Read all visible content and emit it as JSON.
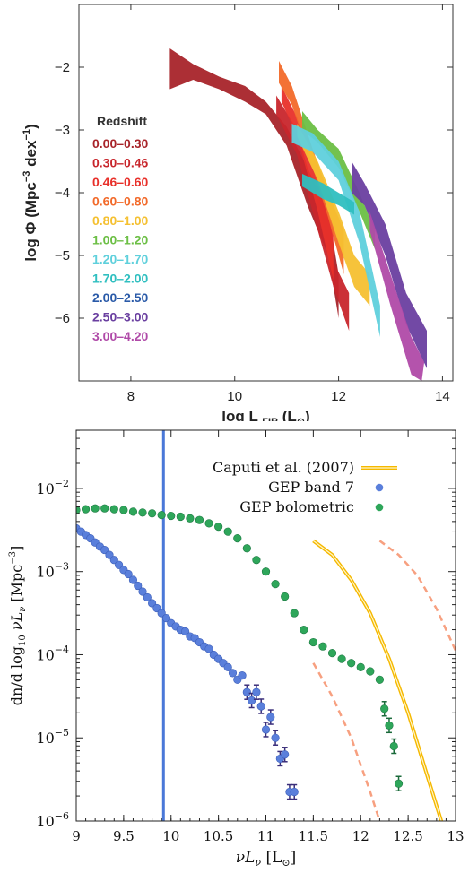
{
  "chart_data": [
    {
      "type": "area",
      "xlabel": "log L",
      "xlabel_sub": "FIR",
      "xlabel_unit": "(L",
      "xlabel_unit_end": ")",
      "ylabel": "log Φ (Mpc",
      "ylabel_exp1": "−3",
      "ylabel_mid": " dex",
      "ylabel_exp2": "−1",
      "ylabel_end": ")",
      "xlim": [
        7,
        14.2
      ],
      "ylim": [
        -7,
        -1
      ],
      "xticks": [
        8,
        10,
        12,
        14
      ],
      "yticks": [
        -2,
        -3,
        -4,
        -5,
        -6
      ],
      "legend_title": "Redshift",
      "legend_placement": "left",
      "series": [
        {
          "name": "0.00–0.30",
          "color": "#a8242a"
        },
        {
          "name": "0.30–0.46",
          "color": "#c8262c"
        },
        {
          "name": "0.46–0.60",
          "color": "#e8302a"
        },
        {
          "name": "0.60–0.80",
          "color": "#f26a2a"
        },
        {
          "name": "0.80–1.00",
          "color": "#f5c030"
        },
        {
          "name": "1.00–1.20",
          "color": "#6cbf45"
        },
        {
          "name": "1.20–1.70",
          "color": "#5fd0dc"
        },
        {
          "name": "1.70–2.00",
          "color": "#2fbfc0"
        },
        {
          "name": "2.00–2.50",
          "color": "#2a5aa8"
        },
        {
          "name": "2.50–3.00",
          "color": "#6a3fa0"
        },
        {
          "name": "3.00–4.20",
          "color": "#b04aa8"
        }
      ],
      "bands": [
        {
          "color": "#a8242a",
          "upper": [
            [
              8.75,
              -1.7
            ],
            [
              9.2,
              -1.95
            ],
            [
              9.7,
              -2.15
            ],
            [
              10.2,
              -2.3
            ],
            [
              10.6,
              -2.55
            ],
            [
              11.0,
              -2.95
            ],
            [
              11.4,
              -3.6
            ],
            [
              11.8,
              -4.3
            ],
            [
              12.0,
              -5.3
            ]
          ],
          "lower": [
            [
              8.75,
              -2.35
            ],
            [
              9.2,
              -2.2
            ],
            [
              9.7,
              -2.35
            ],
            [
              10.2,
              -2.55
            ],
            [
              10.6,
              -2.75
            ],
            [
              11.0,
              -3.25
            ],
            [
              11.4,
              -4.2
            ],
            [
              11.8,
              -5.0
            ],
            [
              12.0,
              -6.0
            ]
          ]
        },
        {
          "color": "#c8262c",
          "upper": [
            [
              10.8,
              -2.45
            ],
            [
              11.2,
              -3.0
            ],
            [
              11.6,
              -4.2
            ],
            [
              11.9,
              -5.1
            ],
            [
              12.2,
              -5.6
            ]
          ],
          "lower": [
            [
              10.8,
              -2.75
            ],
            [
              11.2,
              -3.4
            ],
            [
              11.6,
              -4.6
            ],
            [
              11.9,
              -5.5
            ],
            [
              12.2,
              -6.2
            ]
          ]
        },
        {
          "color": "#e8302a",
          "upper": [
            [
              10.9,
              -2.3
            ],
            [
              11.2,
              -2.8
            ],
            [
              11.6,
              -3.8
            ],
            [
              11.9,
              -4.6
            ]
          ],
          "lower": [
            [
              10.9,
              -2.55
            ],
            [
              11.2,
              -3.1
            ],
            [
              11.6,
              -4.3
            ],
            [
              11.9,
              -5.4
            ]
          ]
        },
        {
          "color": "#f26a2a",
          "upper": [
            [
              10.85,
              -1.9
            ],
            [
              11.1,
              -2.3
            ],
            [
              11.5,
              -3.3
            ],
            [
              11.8,
              -4.0
            ],
            [
              12.1,
              -4.6
            ]
          ],
          "lower": [
            [
              10.85,
              -2.25
            ],
            [
              11.1,
              -2.6
            ],
            [
              11.5,
              -3.6
            ],
            [
              11.8,
              -4.4
            ],
            [
              12.1,
              -5.3
            ]
          ]
        },
        {
          "color": "#f5c030",
          "upper": [
            [
              11.2,
              -2.9
            ],
            [
              11.6,
              -3.5
            ],
            [
              12.0,
              -4.3
            ],
            [
              12.3,
              -5.0
            ],
            [
              12.6,
              -5.3
            ]
          ],
          "lower": [
            [
              11.2,
              -3.1
            ],
            [
              11.6,
              -3.8
            ],
            [
              12.0,
              -4.8
            ],
            [
              12.3,
              -5.5
            ],
            [
              12.6,
              -5.8
            ]
          ]
        },
        {
          "color": "#6cbf45",
          "upper": [
            [
              11.3,
              -2.7
            ],
            [
              11.6,
              -3.0
            ],
            [
              12.0,
              -3.3
            ],
            [
              12.4,
              -4.0
            ],
            [
              12.7,
              -4.6
            ]
          ],
          "lower": [
            [
              11.3,
              -3.0
            ],
            [
              11.6,
              -3.2
            ],
            [
              12.0,
              -3.6
            ],
            [
              12.4,
              -4.3
            ],
            [
              12.7,
              -4.9
            ]
          ]
        },
        {
          "color": "#5fd0dc",
          "upper": [
            [
              11.1,
              -2.9
            ],
            [
              11.5,
              -3.05
            ],
            [
              12.0,
              -3.5
            ],
            [
              12.4,
              -4.3
            ],
            [
              12.8,
              -5.8
            ]
          ],
          "lower": [
            [
              11.1,
              -3.2
            ],
            [
              11.5,
              -3.35
            ],
            [
              12.0,
              -3.8
            ],
            [
              12.4,
              -4.8
            ],
            [
              12.8,
              -6.3
            ]
          ]
        },
        {
          "color": "#2fbfc0",
          "upper": [
            [
              11.3,
              -3.7
            ],
            [
              11.7,
              -3.85
            ],
            [
              12.0,
              -4.0
            ],
            [
              12.3,
              -4.15
            ]
          ],
          "lower": [
            [
              11.3,
              -3.9
            ],
            [
              11.7,
              -4.1
            ],
            [
              12.0,
              -4.2
            ],
            [
              12.3,
              -4.35
            ]
          ]
        },
        {
          "color": "#6a3fa0",
          "upper": [
            [
              12.25,
              -3.5
            ],
            [
              12.5,
              -3.85
            ],
            [
              12.9,
              -4.5
            ],
            [
              13.3,
              -5.6
            ],
            [
              13.7,
              -6.2
            ]
          ],
          "lower": [
            [
              12.25,
              -4.0
            ],
            [
              12.5,
              -4.2
            ],
            [
              12.9,
              -5.0
            ],
            [
              13.3,
              -6.1
            ],
            [
              13.7,
              -6.8
            ]
          ]
        },
        {
          "color": "#b04aa8",
          "upper": [
            [
              12.6,
              -4.3
            ],
            [
              13.0,
              -5.3
            ],
            [
              13.4,
              -6.3
            ],
            [
              13.65,
              -6.7
            ]
          ],
          "lower": [
            [
              12.6,
              -4.6
            ],
            [
              13.0,
              -5.8
            ],
            [
              13.4,
              -6.9
            ],
            [
              13.6,
              -7.0
            ]
          ]
        }
      ]
    },
    {
      "type": "scatter",
      "xlabel": "νL",
      "xlabel_sub": "ν",
      "xlabel_unit": " [L",
      "xlabel_unit_end": "]",
      "ylabel": "dn/d log",
      "ylabel_sub": "10",
      "ylabel_tail": " νL",
      "ylabel_sub2": "ν",
      "ylabel_unit": " [Mpc",
      "ylabel_exp": "−3",
      "ylabel_end": "]",
      "xlim": [
        9,
        13
      ],
      "ylim_log10": [
        -6,
        -2
      ],
      "ylim_top_log10": -1.3,
      "xticks": [
        "9",
        "9.5",
        "10",
        "10.5",
        "11",
        "11.5",
        "12",
        "12.5",
        "13"
      ],
      "yticks": [
        {
          "base": "10",
          "exp": "−2",
          "v": -2
        },
        {
          "base": "10",
          "exp": "−3",
          "v": -3
        },
        {
          "base": "10",
          "exp": "−4",
          "v": -4
        },
        {
          "base": "10",
          "exp": "−5",
          "v": -5
        },
        {
          "base": "10",
          "exp": "−6",
          "v": -6
        }
      ],
      "vertical_line_x": 9.92,
      "legend_placement": "top-right",
      "legend": [
        {
          "name": "Caputi et al. (2007)",
          "kind": "line",
          "color": "#f5b800"
        },
        {
          "name": "GEP band 7",
          "kind": "marker",
          "color": "#5a7fdb"
        },
        {
          "name": "GEP bolometric",
          "kind": "marker",
          "color": "#2ea65a"
        }
      ],
      "series": [
        {
          "name": "GEP band 7",
          "color": "#5a7fdb",
          "x": [
            9.0,
            9.05,
            9.1,
            9.15,
            9.2,
            9.25,
            9.3,
            9.35,
            9.4,
            9.45,
            9.5,
            9.55,
            9.6,
            9.65,
            9.7,
            9.75,
            9.8,
            9.85,
            9.9,
            9.95,
            10.0,
            10.05,
            10.1,
            10.15,
            10.2,
            10.25,
            10.3,
            10.35,
            10.4,
            10.45,
            10.5,
            10.55,
            10.6,
            10.65,
            10.7,
            10.75,
            10.8,
            10.85,
            10.9,
            10.95,
            11.0,
            11.05,
            11.1,
            11.15,
            11.2,
            11.25,
            11.3
          ],
          "log10_y": [
            -2.48,
            -2.52,
            -2.56,
            -2.6,
            -2.65,
            -2.7,
            -2.74,
            -2.8,
            -2.86,
            -2.92,
            -2.98,
            -3.03,
            -3.1,
            -3.17,
            -3.24,
            -3.31,
            -3.38,
            -3.44,
            -3.5,
            -3.56,
            -3.62,
            -3.66,
            -3.7,
            -3.72,
            -3.78,
            -3.8,
            -3.85,
            -3.9,
            -3.93,
            -4.0,
            -4.05,
            -4.1,
            -4.15,
            -4.22,
            -4.3,
            -4.25,
            -4.45,
            -4.55,
            -4.45,
            -4.62,
            -4.9,
            -4.75,
            -5.0,
            -5.25,
            -5.2,
            -5.65,
            -5.65
          ]
        },
        {
          "name": "GEP bolometric",
          "color": "#2ea65a",
          "x": [
            9.0,
            9.1,
            9.2,
            9.3,
            9.4,
            9.5,
            9.6,
            9.7,
            9.8,
            9.9,
            10.0,
            10.1,
            10.2,
            10.3,
            10.4,
            10.5,
            10.6,
            10.7,
            10.8,
            10.9,
            11.0,
            11.1,
            11.2,
            11.3,
            11.4,
            11.5,
            11.6,
            11.7,
            11.8,
            11.9,
            12.0,
            12.1,
            12.2,
            12.25,
            12.3,
            12.35,
            12.4
          ],
          "log10_y": [
            -2.26,
            -2.25,
            -2.24,
            -2.24,
            -2.25,
            -2.26,
            -2.28,
            -2.29,
            -2.3,
            -2.32,
            -2.33,
            -2.34,
            -2.36,
            -2.38,
            -2.42,
            -2.46,
            -2.52,
            -2.6,
            -2.72,
            -2.86,
            -3.0,
            -3.15,
            -3.3,
            -3.5,
            -3.7,
            -3.85,
            -3.9,
            -3.98,
            -4.05,
            -4.1,
            -4.15,
            -4.2,
            -4.3,
            -4.65,
            -4.85,
            -5.1,
            -5.55
          ]
        }
      ],
      "curves": [
        {
          "color": "#f5b800",
          "style": "solid",
          "x": [
            11.5,
            11.7,
            11.9,
            12.1,
            12.3,
            12.5,
            12.7,
            12.85
          ],
          "log10_y": [
            -2.63,
            -2.8,
            -3.1,
            -3.5,
            -4.05,
            -4.7,
            -5.45,
            -6.0
          ]
        },
        {
          "color": "#f7a080",
          "style": "dashed",
          "x": [
            11.5,
            11.7,
            11.9,
            12.1,
            12.2
          ],
          "log10_y": [
            -4.1,
            -4.5,
            -5.0,
            -5.65,
            -6.0
          ]
        },
        {
          "color": "#f7a080",
          "style": "dashed",
          "x": [
            12.2,
            12.4,
            12.6,
            12.8,
            13.0
          ],
          "log10_y": [
            -2.63,
            -2.8,
            -3.05,
            -3.45,
            -3.95
          ]
        }
      ]
    }
  ]
}
